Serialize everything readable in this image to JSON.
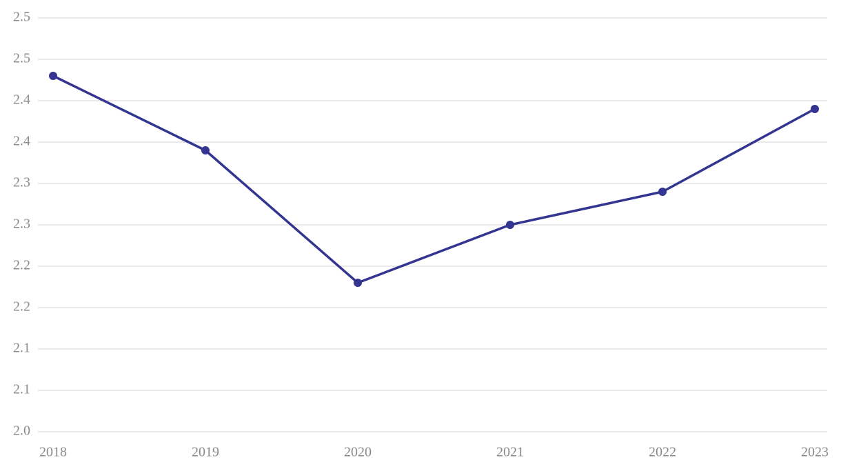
{
  "chart_data": {
    "type": "line",
    "categories": [
      "2018",
      "2019",
      "2020",
      "2021",
      "2022",
      "2023"
    ],
    "series": [
      {
        "color": "#343491",
        "values": [
          2.43,
          2.34,
          2.18,
          2.25,
          2.29,
          2.39
        ]
      }
    ],
    "ylim": [
      2.0,
      2.5
    ],
    "yticks": [
      {
        "value": 2.0,
        "label": "2.0"
      },
      {
        "value": 2.05,
        "label": "2.1"
      },
      {
        "value": 2.1,
        "label": "2.1"
      },
      {
        "value": 2.15,
        "label": "2.2"
      },
      {
        "value": 2.2,
        "label": "2.2"
      },
      {
        "value": 2.25,
        "label": "2.3"
      },
      {
        "value": 2.3,
        "label": "2.3"
      },
      {
        "value": 2.35,
        "label": "2.4"
      },
      {
        "value": 2.4,
        "label": "2.4"
      },
      {
        "value": 2.45,
        "label": "2.5"
      },
      {
        "value": 2.5,
        "label": "2.5"
      }
    ],
    "grid": true
  }
}
